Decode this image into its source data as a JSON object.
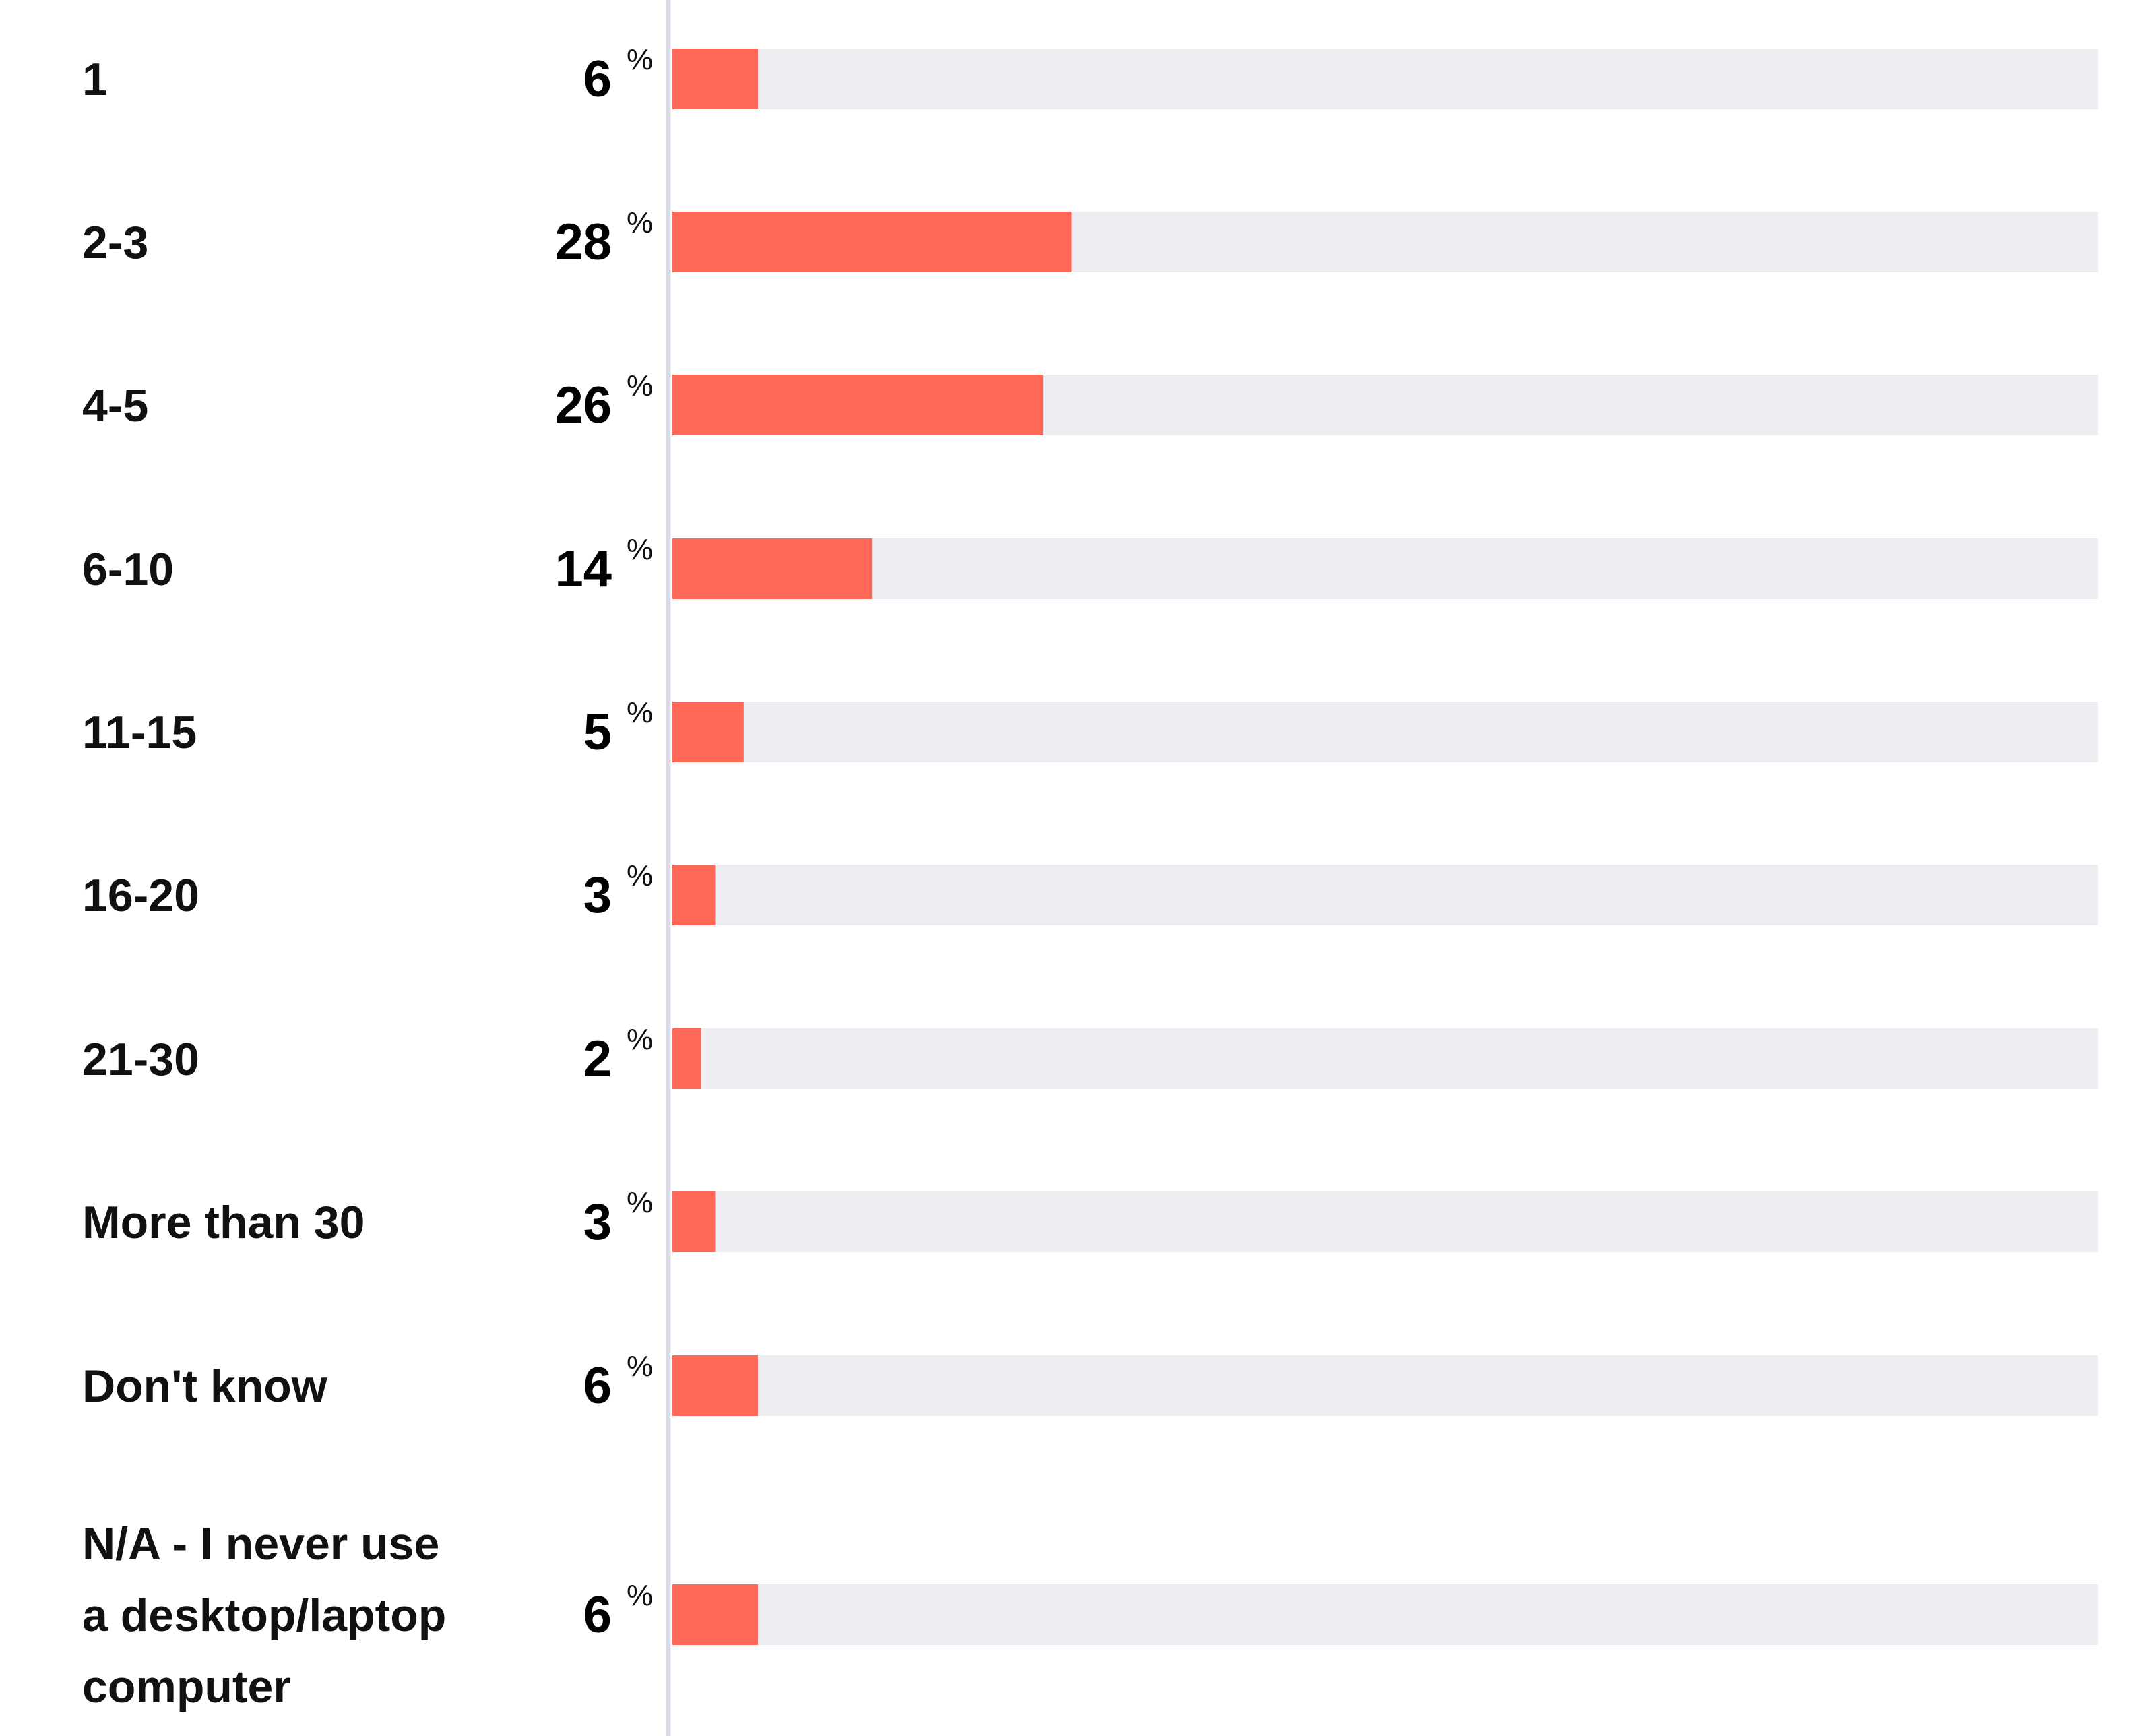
{
  "chart_data": {
    "type": "bar",
    "orientation": "horizontal",
    "categories": [
      [
        "1"
      ],
      [
        "2-3"
      ],
      [
        "4-5"
      ],
      [
        "6-10"
      ],
      [
        "11-15"
      ],
      [
        "16-20"
      ],
      [
        "21-30"
      ],
      [
        "More than 30"
      ],
      [
        "Don't know"
      ],
      [
        "N/A - I never use",
        "a desktop/laptop",
        "computer"
      ]
    ],
    "values": [
      6,
      28,
      26,
      14,
      5,
      3,
      2,
      3,
      6,
      6
    ],
    "unit": "%",
    "xlim": [
      0,
      100
    ],
    "title": "",
    "xlabel": "",
    "ylabel": "",
    "grid": false,
    "legend": "none",
    "colors": {
      "bar": "#FF6859",
      "track": "#EDEDF2",
      "axis": "#DADCE6",
      "category_text": "#111111",
      "value_text": "#000000"
    }
  }
}
